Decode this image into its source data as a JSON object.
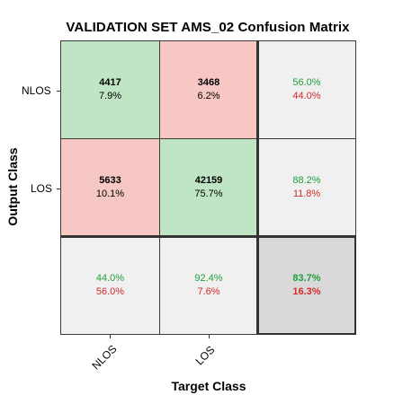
{
  "chart_data": {
    "type": "table",
    "title": "VALIDATION SET AMS_02 Confusion Matrix",
    "xlabel": "Target Class",
    "ylabel": "Output Class",
    "classes": [
      "NLOS",
      "LOS"
    ],
    "matrix": [
      [
        {
          "count": "4417",
          "pct": "7.9%"
        },
        {
          "count": "3468",
          "pct": "6.2%"
        }
      ],
      [
        {
          "count": "5633",
          "pct": "10.1%"
        },
        {
          "count": "42159",
          "pct": "75.7%"
        }
      ]
    ],
    "row_summary": [
      {
        "correct": "56.0%",
        "wrong": "44.0%"
      },
      {
        "correct": "88.2%",
        "wrong": "11.8%"
      }
    ],
    "col_summary": [
      {
        "correct": "44.0%",
        "wrong": "56.0%"
      },
      {
        "correct": "92.4%",
        "wrong": "7.6%"
      }
    ],
    "overall": {
      "correct": "83.7%",
      "wrong": "16.3%"
    },
    "colors": {
      "correct_cell": "#bfe5c5",
      "error_cell": "#f6c7c3",
      "summary_cell": "#f0f0f0",
      "overall_cell": "#d9d9d9",
      "correct_text": "#1f9f3c",
      "wrong_text": "#d22b2b"
    }
  }
}
